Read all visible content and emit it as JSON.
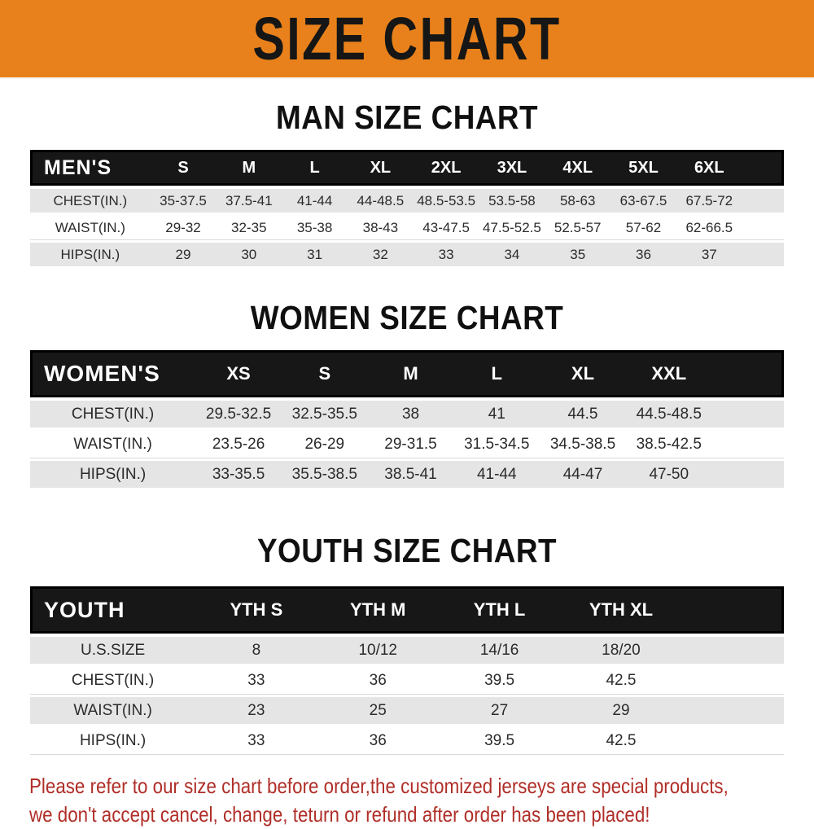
{
  "banner": {
    "title": "SIZE CHART",
    "bg_color": "#E8811B",
    "text_color": "#161616"
  },
  "colors": {
    "table_header_bg": "#171717",
    "table_header_text": "#FFFFFF",
    "stripe_gray": "#E5E5E5",
    "data_text": "#2B2B2B",
    "footer_red": "#B02E28"
  },
  "sections": [
    {
      "heading": "MAN SIZE CHART",
      "table": {
        "label": "MEN'S",
        "columns": [
          "S",
          "M",
          "L",
          "XL",
          "2XL",
          "3XL",
          "4XL",
          "5XL",
          "6XL"
        ],
        "rows": [
          {
            "label": "CHEST(IN.)",
            "values": [
              "35-37.5",
              "37.5-41",
              "41-44",
              "44-48.5",
              "48.5-53.5",
              "53.5-58",
              "58-63",
              "63-67.5",
              "67.5-72"
            ]
          },
          {
            "label": "WAIST(IN.)",
            "values": [
              "29-32",
              "32-35",
              "35-38",
              "38-43",
              "43-47.5",
              "47.5-52.5",
              "52.5-57",
              "57-62",
              "62-66.5"
            ]
          },
          {
            "label": "HIPS(IN.)",
            "values": [
              "29",
              "30",
              "31",
              "32",
              "33",
              "34",
              "35",
              "36",
              "37"
            ]
          }
        ]
      }
    },
    {
      "heading": "WOMEN SIZE CHART",
      "table": {
        "label": "WOMEN'S",
        "columns": [
          "XS",
          "S",
          "M",
          "L",
          "XL",
          "XXL"
        ],
        "rows": [
          {
            "label": "CHEST(IN.)",
            "values": [
              "29.5-32.5",
              "32.5-35.5",
              "38",
              "41",
              "44.5",
              "44.5-48.5"
            ]
          },
          {
            "label": "WAIST(IN.)",
            "values": [
              "23.5-26",
              "26-29",
              "29-31.5",
              "31.5-34.5",
              "34.5-38.5",
              "38.5-42.5"
            ]
          },
          {
            "label": "HIPS(IN.)",
            "values": [
              "33-35.5",
              "35.5-38.5",
              "38.5-41",
              "41-44",
              "44-47",
              "47-50"
            ]
          }
        ]
      }
    },
    {
      "heading": "YOUTH SIZE CHART",
      "table": {
        "label": "YOUTH",
        "columns": [
          "YTH S",
          "YTH M",
          "YTH L",
          "YTH XL"
        ],
        "rows": [
          {
            "label": "U.S.SIZE",
            "values": [
              "8",
              "10/12",
              "14/16",
              "18/20"
            ]
          },
          {
            "label": "CHEST(IN.)",
            "values": [
              "33",
              "36",
              "39.5",
              "42.5"
            ]
          },
          {
            "label": "WAIST(IN.)",
            "values": [
              "23",
              "25",
              "27",
              "29"
            ]
          },
          {
            "label": "HIPS(IN.)",
            "values": [
              "33",
              "36",
              "39.5",
              "42.5"
            ]
          }
        ]
      }
    }
  ],
  "footer": {
    "line1": "Please refer to our size chart before order,the customized jerseys are special products,",
    "line2": "we don't accept cancel, change, teturn or refund after order has been placed!"
  }
}
